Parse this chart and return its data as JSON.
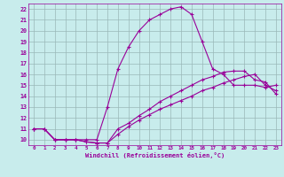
{
  "xlabel": "Windchill (Refroidissement éolien,°C)",
  "bg_color": "#c8ecec",
  "line_color": "#990099",
  "grid_color": "#9ab8b8",
  "xlim": [
    -0.5,
    23.5
  ],
  "ylim": [
    9.5,
    22.5
  ],
  "xticks": [
    0,
    1,
    2,
    3,
    4,
    5,
    6,
    7,
    8,
    9,
    10,
    11,
    12,
    13,
    14,
    15,
    16,
    17,
    18,
    19,
    20,
    21,
    22,
    23
  ],
  "yticks": [
    10,
    11,
    12,
    13,
    14,
    15,
    16,
    17,
    18,
    19,
    20,
    21,
    22
  ],
  "line1_x": [
    0,
    1,
    2,
    3,
    4,
    5,
    6,
    7,
    8,
    9,
    10,
    11,
    12,
    13,
    14,
    15,
    16,
    17,
    18,
    19,
    20,
    21,
    22,
    23
  ],
  "line1_y": [
    11,
    11,
    10,
    10,
    10,
    10,
    10,
    13,
    16.5,
    18.5,
    20,
    21,
    21.5,
    22,
    22.2,
    21.5,
    19,
    16.5,
    16,
    15,
    15,
    15,
    14.8,
    15
  ],
  "line2_x": [
    0,
    1,
    2,
    3,
    4,
    5,
    6,
    7,
    8,
    9,
    10,
    11,
    12,
    13,
    14,
    15,
    16,
    17,
    18,
    19,
    20,
    21,
    22,
    23
  ],
  "line2_y": [
    11,
    11,
    10,
    10,
    10,
    9.8,
    9.7,
    9.7,
    10.5,
    11.2,
    11.8,
    12.3,
    12.8,
    13.2,
    13.6,
    14.0,
    14.5,
    14.8,
    15.2,
    15.5,
    15.8,
    16.0,
    15.0,
    14.5
  ],
  "line3_x": [
    0,
    1,
    2,
    3,
    4,
    5,
    6,
    7,
    8,
    9,
    10,
    11,
    12,
    13,
    14,
    15,
    16,
    17,
    18,
    19,
    20,
    21,
    22,
    23
  ],
  "line3_y": [
    11,
    11,
    10,
    10,
    10,
    9.8,
    9.7,
    9.7,
    11.0,
    11.5,
    12.2,
    12.8,
    13.5,
    14.0,
    14.5,
    15.0,
    15.5,
    15.8,
    16.2,
    16.3,
    16.3,
    15.5,
    15.3,
    14.2
  ]
}
